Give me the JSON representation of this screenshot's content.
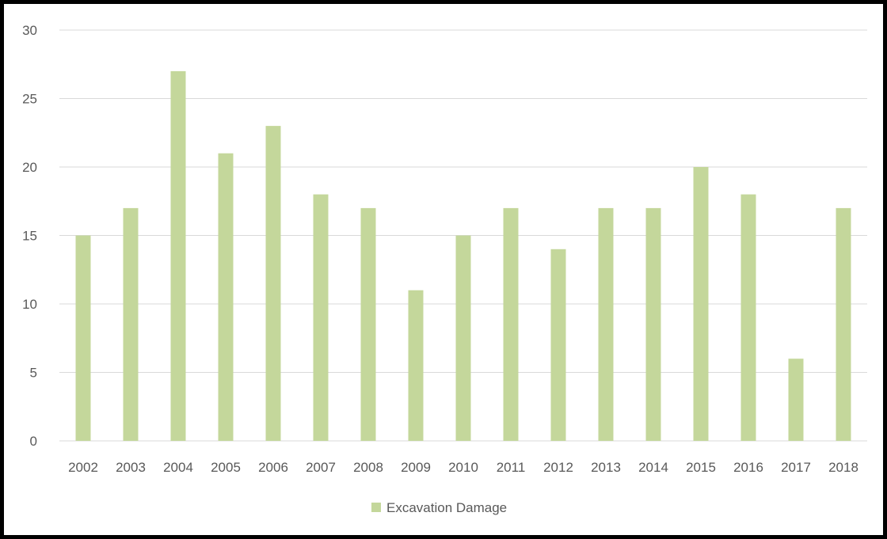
{
  "chart_data": {
    "type": "bar",
    "title": "",
    "xlabel": "",
    "ylabel": "",
    "categories": [
      "2002",
      "2003",
      "2004",
      "2005",
      "2006",
      "2007",
      "2008",
      "2009",
      "2010",
      "2011",
      "2012",
      "2013",
      "2014",
      "2015",
      "2016",
      "2017",
      "2018"
    ],
    "series": [
      {
        "name": "Excavation Damage",
        "values": [
          15,
          17,
          27,
          21,
          23,
          18,
          17,
          11,
          15,
          17,
          14,
          17,
          17,
          20,
          18,
          6,
          17
        ]
      }
    ],
    "ylim": [
      0,
      30
    ],
    "yticks": [
      0,
      5,
      10,
      15,
      20,
      25,
      30
    ],
    "grid": true,
    "legend_position": "bottom",
    "colors": {
      "bar": "#c4d79b",
      "grid": "#d9d9d9",
      "text": "#595959",
      "border": "#000000"
    }
  }
}
